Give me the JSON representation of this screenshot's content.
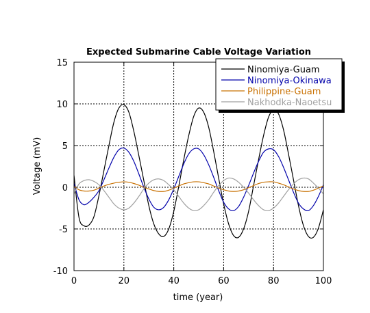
{
  "chart_data": {
    "type": "line",
    "title": "Expected Submarine Cable Voltage Variation",
    "xlabel": "time (year)",
    "ylabel": "Voltage (mV)",
    "xlim": [
      0,
      100
    ],
    "ylim": [
      -10,
      15
    ],
    "xticks": [
      0,
      20,
      40,
      60,
      80,
      100
    ],
    "yticks": [
      -10,
      -5,
      0,
      5,
      10,
      15
    ],
    "grid": true,
    "legend_position": "top-right",
    "x": [
      0,
      2,
      4,
      6,
      8,
      10,
      12,
      14,
      16,
      18,
      20,
      22,
      24,
      26,
      28,
      30,
      32,
      34,
      36,
      38,
      40,
      42,
      44,
      46,
      48,
      50,
      52,
      54,
      56,
      58,
      60,
      62,
      64,
      66,
      68,
      70,
      72,
      74,
      76,
      78,
      80,
      82,
      84,
      86,
      88,
      90,
      92,
      94,
      96,
      98,
      100
    ],
    "series": [
      {
        "name": "Ninomiya-Guam",
        "color": "#000000",
        "values": [
          1.43,
          -3.63,
          -4.62,
          -4.53,
          -3.52,
          -1.0,
          2.0,
          5.0,
          7.8,
          9.5,
          9.9,
          9.0,
          6.7,
          3.8,
          0.8,
          -2.2,
          -4.4,
          -5.6,
          -5.9,
          -5.0,
          -2.9,
          0.1,
          3.3,
          6.2,
          8.5,
          9.5,
          9.0,
          7.2,
          4.3,
          1.1,
          -2.0,
          -4.4,
          -5.8,
          -6.0,
          -5.0,
          -2.9,
          0.2,
          3.3,
          6.2,
          8.4,
          9.3,
          8.8,
          6.9,
          4.0,
          0.9,
          -2.2,
          -4.6,
          -5.9,
          -6.0,
          -4.9,
          -2.7
        ]
      },
      {
        "name": "Ninomiya-Okinawa",
        "color": "#0000aa",
        "values": [
          0.5,
          -1.5,
          -2.1,
          -1.8,
          -1.2,
          -0.4,
          0.9,
          2.3,
          3.6,
          4.5,
          4.7,
          4.2,
          3.1,
          1.6,
          0.0,
          -1.4,
          -2.4,
          -2.7,
          -2.4,
          -1.5,
          -0.2,
          1.3,
          2.8,
          4.0,
          4.6,
          4.6,
          3.9,
          2.7,
          1.2,
          -0.4,
          -1.8,
          -2.6,
          -2.8,
          -2.3,
          -1.2,
          0.2,
          1.7,
          3.1,
          4.2,
          4.6,
          4.5,
          3.7,
          2.4,
          0.9,
          -0.6,
          -1.9,
          -2.6,
          -2.8,
          -2.2,
          -1.1,
          0.3
        ]
      },
      {
        "name": "Philippine-Guam",
        "color": "#c87000",
        "values": [
          0.1,
          -0.3,
          -0.45,
          -0.45,
          -0.35,
          -0.1,
          0.15,
          0.35,
          0.5,
          0.6,
          0.65,
          0.6,
          0.45,
          0.25,
          0.0,
          -0.2,
          -0.4,
          -0.5,
          -0.5,
          -0.35,
          -0.1,
          0.15,
          0.4,
          0.55,
          0.65,
          0.65,
          0.55,
          0.4,
          0.15,
          -0.1,
          -0.3,
          -0.45,
          -0.5,
          -0.45,
          -0.3,
          -0.05,
          0.2,
          0.45,
          0.6,
          0.65,
          0.65,
          0.5,
          0.3,
          0.05,
          -0.2,
          -0.4,
          -0.5,
          -0.5,
          -0.35,
          -0.1,
          0.15
        ]
      },
      {
        "name": "Nakhodka-Naoetsu",
        "color": "#a0a0a0",
        "values": [
          -0.8,
          0.4,
          0.8,
          0.9,
          0.7,
          0.3,
          -0.4,
          -1.2,
          -2.0,
          -2.5,
          -2.7,
          -2.5,
          -1.9,
          -1.1,
          -0.2,
          0.5,
          0.9,
          1.0,
          0.8,
          0.3,
          -0.3,
          -1.1,
          -1.9,
          -2.5,
          -2.8,
          -2.7,
          -2.2,
          -1.5,
          -0.6,
          0.2,
          0.8,
          1.1,
          1.0,
          0.6,
          0.0,
          -0.7,
          -1.5,
          -2.2,
          -2.7,
          -2.8,
          -2.5,
          -1.9,
          -1.1,
          -0.3,
          0.4,
          0.9,
          1.1,
          1.0,
          0.5,
          -0.1,
          -0.8
        ]
      }
    ]
  }
}
